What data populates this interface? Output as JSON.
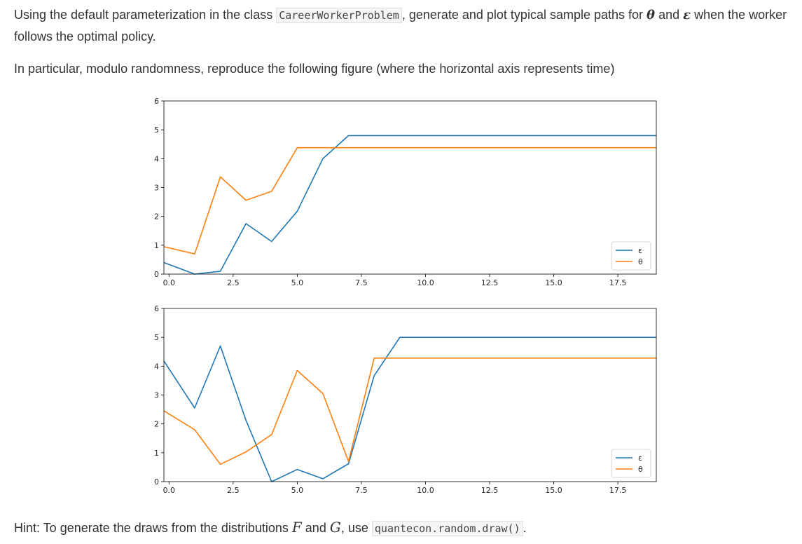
{
  "intro": {
    "before_class": "Using the default parameterization in the class",
    "class_name": "CareerWorkerProblem",
    "after_class": ", generate and plot typical sample paths for",
    "theta": "θ",
    "and_word": "and",
    "epsilon": "ε",
    "after_symbols": "when the worker follows the optimal policy."
  },
  "particular": "In particular, modulo randomness, reproduce the following figure (where the horizontal axis represents time)",
  "hint": {
    "before": "Hint: To generate the draws from the distributions",
    "F": "F",
    "and_word": "and",
    "G": "G",
    "comma_use": ", use",
    "code": "quantecon.random.draw()",
    "period": "."
  },
  "chart_data": [
    {
      "type": "line",
      "xlim": [
        -0.2,
        19
      ],
      "ylim": [
        0,
        6
      ],
      "x_ticks": [
        "0.0",
        "2.5",
        "5.0",
        "7.5",
        "10.0",
        "12.5",
        "15.0",
        "17.5"
      ],
      "x_tick_values": [
        0,
        2.5,
        5,
        7.5,
        10,
        12.5,
        15,
        17.5
      ],
      "y_ticks": [
        "0",
        "1",
        "2",
        "3",
        "4",
        "5",
        "6"
      ],
      "y_tick_values": [
        0,
        1,
        2,
        3,
        4,
        5,
        6
      ],
      "legend_position": "bottom-right",
      "series": [
        {
          "name": "ε",
          "color": "#1f77b4",
          "x": [
            -0.2,
            1,
            2,
            3,
            4,
            5,
            6,
            7,
            8,
            9,
            10,
            11,
            12,
            13,
            14,
            15,
            16,
            17,
            18,
            19
          ],
          "values": [
            0.4,
            0.0,
            0.1,
            1.75,
            1.13,
            2.18,
            4.0,
            4.8,
            4.8,
            4.8,
            4.8,
            4.8,
            4.8,
            4.8,
            4.8,
            4.8,
            4.8,
            4.8,
            4.8,
            4.8
          ]
        },
        {
          "name": "θ",
          "color": "#ff7f0e",
          "x": [
            -0.2,
            1,
            2,
            3,
            4,
            5,
            6,
            7,
            8,
            9,
            10,
            11,
            12,
            13,
            14,
            15,
            16,
            17,
            18,
            19
          ],
          "values": [
            0.95,
            0.7,
            3.37,
            2.56,
            2.87,
            4.38,
            4.38,
            4.38,
            4.38,
            4.38,
            4.38,
            4.38,
            4.38,
            4.38,
            4.38,
            4.38,
            4.38,
            4.38,
            4.38,
            4.38
          ]
        }
      ]
    },
    {
      "type": "line",
      "xlim": [
        -0.2,
        19
      ],
      "ylim": [
        0,
        6
      ],
      "x_ticks": [
        "0.0",
        "2.5",
        "5.0",
        "7.5",
        "10.0",
        "12.5",
        "15.0",
        "17.5"
      ],
      "x_tick_values": [
        0,
        2.5,
        5,
        7.5,
        10,
        12.5,
        15,
        17.5
      ],
      "y_ticks": [
        "0",
        "1",
        "2",
        "3",
        "4",
        "5",
        "6"
      ],
      "y_tick_values": [
        0,
        1,
        2,
        3,
        4,
        5,
        6
      ],
      "legend_position": "bottom-right",
      "series": [
        {
          "name": "ε",
          "color": "#1f77b4",
          "x": [
            -0.2,
            1,
            2,
            3,
            4,
            5,
            6,
            7,
            8,
            9,
            10,
            11,
            12,
            13,
            14,
            15,
            16,
            17,
            18,
            19
          ],
          "values": [
            4.18,
            2.55,
            4.7,
            2.12,
            0.0,
            0.42,
            0.1,
            0.62,
            3.67,
            5.0,
            5.0,
            5.0,
            5.0,
            5.0,
            5.0,
            5.0,
            5.0,
            5.0,
            5.0,
            5.0
          ]
        },
        {
          "name": "θ",
          "color": "#ff7f0e",
          "x": [
            -0.2,
            1,
            2,
            3,
            4,
            5,
            6,
            7,
            8,
            9,
            10,
            11,
            12,
            13,
            14,
            15,
            16,
            17,
            18,
            19
          ],
          "values": [
            2.45,
            1.8,
            0.6,
            1.03,
            1.63,
            3.85,
            3.05,
            0.7,
            4.28,
            4.28,
            4.28,
            4.28,
            4.28,
            4.28,
            4.28,
            4.28,
            4.28,
            4.28,
            4.28,
            4.28
          ]
        }
      ]
    }
  ]
}
